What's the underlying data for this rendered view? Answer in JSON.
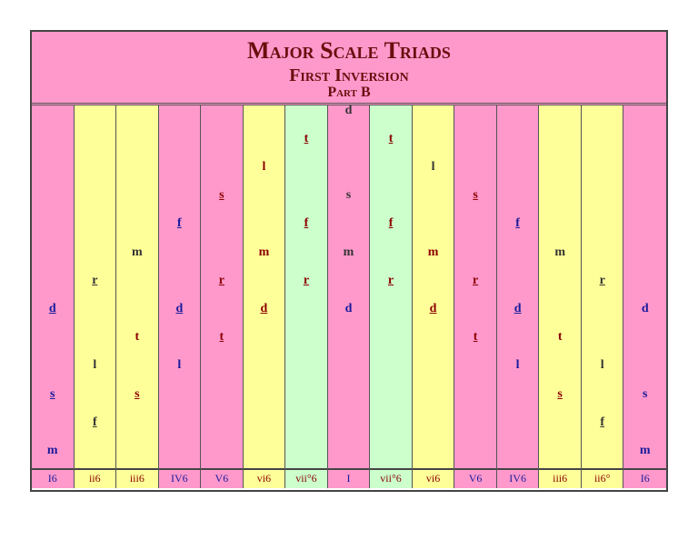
{
  "header": {
    "title": "Major Scale Triads",
    "subtitle": "First Inversion",
    "part": "Part B"
  },
  "colors": {
    "pink": "#ff99cc",
    "yellow": "#ffff99",
    "green": "#ccffcc",
    "ink_blue": "#1a1a99",
    "ink_red": "#8b0000",
    "ink_dark": "#333333"
  },
  "chords": [
    {
      "label": "I6",
      "color": "pink",
      "notes": [
        {
          "row": 9,
          "syl": "m",
          "u": false,
          "ink": "blue"
        },
        {
          "row": 7,
          "syl": "s",
          "u": true,
          "ink": "blue"
        },
        {
          "row": 4,
          "syl": "d",
          "u": true,
          "ink": "blue"
        }
      ]
    },
    {
      "label": "ii6",
      "color": "yellow",
      "notes": [
        {
          "row": 8,
          "syl": "f",
          "u": true,
          "ink": "dark"
        },
        {
          "row": 6,
          "syl": "l",
          "u": false,
          "ink": "dark"
        },
        {
          "row": 3,
          "syl": "r",
          "u": true,
          "ink": "dark"
        }
      ]
    },
    {
      "label": "iii6",
      "color": "yellow",
      "notes": [
        {
          "row": 7,
          "syl": "s",
          "u": true,
          "ink": "red"
        },
        {
          "row": 5,
          "syl": "t",
          "u": false,
          "ink": "red"
        },
        {
          "row": 2,
          "syl": "m",
          "u": false,
          "ink": "dark"
        }
      ]
    },
    {
      "label": "IV6",
      "color": "pink",
      "notes": [
        {
          "row": 6,
          "syl": "l",
          "u": false,
          "ink": "blue"
        },
        {
          "row": 4,
          "syl": "d",
          "u": true,
          "ink": "blue"
        },
        {
          "row": 1,
          "syl": "f",
          "u": true,
          "ink": "blue"
        }
      ]
    },
    {
      "label": "V6",
      "color": "pink",
      "notes": [
        {
          "row": 5,
          "syl": "t",
          "u": true,
          "ink": "red"
        },
        {
          "row": 3,
          "syl": "r",
          "u": true,
          "ink": "red"
        },
        {
          "row": 0,
          "syl": "s",
          "u": true,
          "ink": "red"
        }
      ]
    },
    {
      "label": "vi6",
      "color": "yellow",
      "notes": [
        {
          "row": 4,
          "syl": "d",
          "u": true,
          "ink": "red"
        },
        {
          "row": 2,
          "syl": "m",
          "u": false,
          "ink": "red"
        },
        {
          "row": -1,
          "syl": "l",
          "u": false,
          "ink": "red"
        }
      ]
    },
    {
      "label": "vii°6",
      "color": "green",
      "notes": [
        {
          "row": 3,
          "syl": "r",
          "u": true,
          "ink": "red"
        },
        {
          "row": 1,
          "syl": "f",
          "u": true,
          "ink": "red"
        },
        {
          "row": -2,
          "syl": "t",
          "u": true,
          "ink": "red"
        }
      ]
    },
    {
      "label": "I",
      "color": "pink",
      "notes": [
        {
          "row": 4,
          "syl": "d",
          "u": false,
          "ink": "blue"
        },
        {
          "row": 2,
          "syl": "m",
          "u": false,
          "ink": "dark"
        },
        {
          "row": 0,
          "syl": "s",
          "u": false,
          "ink": "dark"
        },
        {
          "row": -3,
          "syl": "d",
          "u": false,
          "ink": "dark"
        }
      ]
    },
    {
      "label": "vii°6",
      "color": "green",
      "notes": [
        {
          "row": 3,
          "syl": "r",
          "u": true,
          "ink": "red"
        },
        {
          "row": 1,
          "syl": "f",
          "u": true,
          "ink": "red"
        },
        {
          "row": -2,
          "syl": "t",
          "u": true,
          "ink": "red"
        }
      ]
    },
    {
      "label": "vi6",
      "color": "yellow",
      "notes": [
        {
          "row": 4,
          "syl": "d",
          "u": true,
          "ink": "red"
        },
        {
          "row": 2,
          "syl": "m",
          "u": false,
          "ink": "red"
        },
        {
          "row": -1,
          "syl": "l",
          "u": false,
          "ink": "dark"
        }
      ]
    },
    {
      "label": "V6",
      "color": "pink",
      "notes": [
        {
          "row": 5,
          "syl": "t",
          "u": true,
          "ink": "red"
        },
        {
          "row": 3,
          "syl": "r",
          "u": true,
          "ink": "red"
        },
        {
          "row": 0,
          "syl": "s",
          "u": true,
          "ink": "red"
        }
      ]
    },
    {
      "label": "IV6",
      "color": "pink",
      "notes": [
        {
          "row": 6,
          "syl": "l",
          "u": false,
          "ink": "blue"
        },
        {
          "row": 4,
          "syl": "d",
          "u": true,
          "ink": "blue"
        },
        {
          "row": 1,
          "syl": "f",
          "u": true,
          "ink": "blue"
        }
      ]
    },
    {
      "label": "iii6",
      "color": "yellow",
      "notes": [
        {
          "row": 7,
          "syl": "s",
          "u": true,
          "ink": "red"
        },
        {
          "row": 5,
          "syl": "t",
          "u": false,
          "ink": "red"
        },
        {
          "row": 2,
          "syl": "m",
          "u": false,
          "ink": "dark"
        }
      ]
    },
    {
      "label": "ii6°",
      "color": "yellow",
      "notes": [
        {
          "row": 8,
          "syl": "f",
          "u": true,
          "ink": "dark"
        },
        {
          "row": 6,
          "syl": "l",
          "u": false,
          "ink": "dark"
        },
        {
          "row": 3,
          "syl": "r",
          "u": true,
          "ink": "dark"
        }
      ]
    },
    {
      "label": "I6",
      "color": "pink",
      "notes": [
        {
          "row": 9,
          "syl": "m",
          "u": false,
          "ink": "blue"
        },
        {
          "row": 7,
          "syl": "s",
          "u": false,
          "ink": "blue"
        },
        {
          "row": 4,
          "syl": "d",
          "u": false,
          "ink": "blue"
        }
      ]
    }
  ]
}
